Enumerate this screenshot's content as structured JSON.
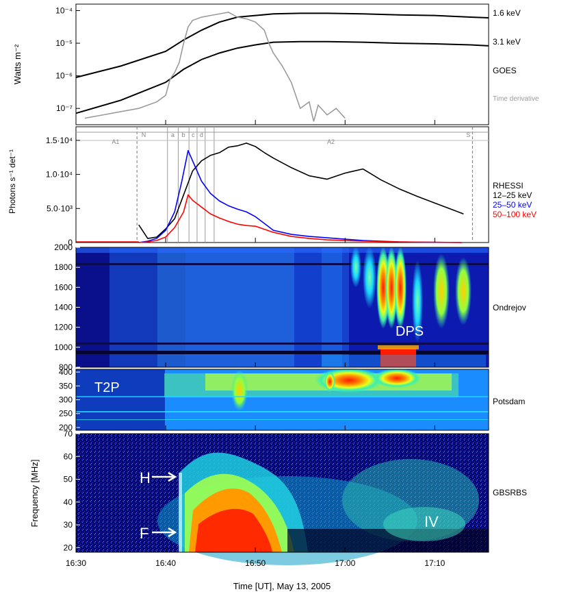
{
  "figure": {
    "xaxis": {
      "label": "Time [UT], May 13, 2005",
      "ticks": [
        "16:30",
        "16:40",
        "16:50",
        "17:00",
        "17:10"
      ],
      "range_min": [
        0,
        46
      ]
    }
  },
  "chart_data": [
    {
      "type": "line",
      "panel": "goes",
      "ylabel": "Watts m⁻²",
      "ylim": [
        -7.5,
        -3.8
      ],
      "ytick_labels": [
        "10⁻⁴",
        "10⁻⁵",
        "10⁻⁶",
        "10⁻⁷"
      ],
      "ytick_values": [
        -4,
        -5,
        -6,
        -7
      ],
      "legend": [
        "1.6 keV",
        "3.1 keV",
        "GOES",
        "Time derivative"
      ],
      "series": [
        {
          "name": "1.6 keV",
          "color": "#000000",
          "x": [
            0,
            5,
            10,
            12,
            14,
            16,
            18,
            20,
            22,
            25,
            28,
            32,
            36,
            40,
            44,
            46
          ],
          "y": [
            -6.05,
            -5.7,
            -5.25,
            -4.9,
            -4.6,
            -4.35,
            -4.2,
            -4.15,
            -4.1,
            -4.08,
            -4.08,
            -4.1,
            -4.13,
            -4.15,
            -4.2,
            -4.22
          ]
        },
        {
          "name": "3.1 keV",
          "color": "#000000",
          "x": [
            0,
            5,
            10,
            12,
            14,
            16,
            18,
            20,
            22,
            25,
            28,
            32,
            36,
            40,
            44,
            46
          ],
          "y": [
            -7.15,
            -6.75,
            -6.2,
            -5.8,
            -5.5,
            -5.3,
            -5.15,
            -5.05,
            -4.97,
            -4.95,
            -4.95,
            -4.97,
            -5.0,
            -5.02,
            -5.05,
            -5.08
          ]
        },
        {
          "name": "Time derivative",
          "color": "#9a9a9a",
          "x": [
            1,
            3,
            5,
            7,
            8,
            9,
            10,
            10.5,
            11,
            11.5,
            12,
            12.5,
            13,
            14,
            15,
            16,
            17,
            18,
            19,
            20,
            21,
            21.5,
            22,
            23,
            24,
            25,
            26,
            26.5,
            27,
            28,
            29,
            30
          ],
          "y": [
            -7.3,
            -7.2,
            -7.1,
            -7.0,
            -6.9,
            -6.8,
            -6.6,
            -6.1,
            -5.9,
            -5.6,
            -5.0,
            -4.5,
            -4.3,
            -4.2,
            -4.15,
            -4.1,
            -4.05,
            -4.2,
            -4.25,
            -4.35,
            -4.6,
            -5.0,
            -5.3,
            -5.7,
            -6.2,
            -7.0,
            -6.8,
            -7.4,
            -6.9,
            -7.2,
            -7.0,
            -7.3
          ]
        }
      ]
    },
    {
      "type": "line",
      "panel": "rhessi",
      "ylabel": "Photons s⁻¹ det⁻¹",
      "ylim": [
        0,
        17000
      ],
      "ytick_labels": [
        "1.5·10⁴",
        "1.0·10⁴",
        "5.0·10³",
        "0"
      ],
      "ytick_values": [
        15000,
        10000,
        5000,
        0
      ],
      "legend": [
        "RHESSI",
        "12–25 keV",
        "25–50 keV",
        "50–100 keV"
      ],
      "interval_labels": [
        "N",
        "a",
        "b",
        "c",
        "d",
        "S",
        "A1",
        "A2"
      ],
      "series": [
        {
          "name": "12–25 keV",
          "color": "#000000",
          "x": [
            7,
            8,
            9,
            10,
            11,
            12,
            13,
            14,
            15,
            16,
            17,
            18,
            19,
            20,
            21,
            22,
            24,
            26,
            28,
            30,
            32,
            34,
            36,
            38,
            40,
            42,
            43.2
          ],
          "y": [
            2600,
            600,
            800,
            2000,
            3500,
            7000,
            10500,
            12000,
            12800,
            13200,
            14000,
            14200,
            14600,
            14100,
            13200,
            12400,
            11000,
            9800,
            9300,
            10200,
            10800,
            9200,
            7900,
            6800,
            5800,
            4800,
            4200
          ]
        },
        {
          "name": "25–50 keV",
          "color": "#0000ff",
          "x": [
            7,
            8,
            9,
            10,
            11,
            11.8,
            12.5,
            13,
            13.5,
            14,
            15,
            16,
            17,
            18,
            19,
            20,
            21,
            22,
            24,
            26,
            28,
            30,
            32,
            34,
            36,
            38,
            40,
            43
          ],
          "y": [
            0,
            200,
            600,
            1800,
            4500,
            9000,
            13500,
            12000,
            10500,
            9000,
            7200,
            6100,
            5400,
            4900,
            4500,
            3800,
            2800,
            1800,
            1200,
            900,
            700,
            500,
            300,
            200,
            100,
            60,
            30,
            0
          ]
        },
        {
          "name": "50–100 keV",
          "color": "#ff0000",
          "x": [
            7,
            8,
            9,
            10,
            11,
            12,
            12.5,
            13,
            14,
            15,
            16,
            17,
            18,
            19,
            20,
            22,
            24,
            26,
            28,
            30,
            32,
            36,
            40,
            43
          ],
          "y": [
            0,
            100,
            300,
            800,
            2200,
            4500,
            7000,
            6200,
            5200,
            4200,
            3600,
            3100,
            2700,
            2500,
            2400,
            1500,
            900,
            600,
            400,
            300,
            200,
            100,
            50,
            0
          ]
        }
      ]
    },
    {
      "type": "heatmap",
      "panel": "ondrejov",
      "label": "Ondrejov",
      "annotation": "DPS",
      "ylim": [
        800,
        2000
      ],
      "ytick_labels": [
        "2000",
        "1800",
        "1600",
        "1400",
        "1200",
        "1000",
        "800"
      ],
      "ytick_values": [
        2000,
        1800,
        1600,
        1400,
        1200,
        1000,
        800
      ]
    },
    {
      "type": "heatmap",
      "panel": "potsdam",
      "label": "Potsdam",
      "annotation": "T2P",
      "ylim": [
        190,
        410
      ],
      "ytick_labels": [
        "400",
        "350",
        "300",
        "250",
        "200"
      ],
      "ytick_values": [
        400,
        350,
        300,
        250,
        200
      ]
    },
    {
      "type": "heatmap",
      "panel": "gbsrbs",
      "label": "GBSRBS",
      "ylabel": "Frequency [MHz]",
      "ylim": [
        18,
        70
      ],
      "ytick_labels": [
        "70",
        "60",
        "50",
        "40",
        "30",
        "20"
      ],
      "ytick_values": [
        70,
        60,
        50,
        40,
        30,
        20
      ],
      "annotations": [
        "H",
        "F",
        "IV"
      ]
    }
  ]
}
